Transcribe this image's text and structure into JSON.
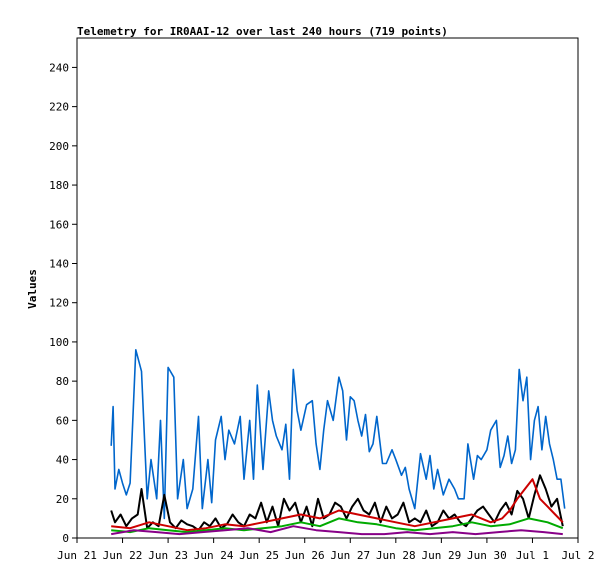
{
  "chart_data": {
    "type": "line",
    "title": "Telemetry for IR0AAI-12 over last 240 hours (719 points)",
    "xlabel": "",
    "ylabel": "Values",
    "xlim": [
      "Jun 21",
      "Jul 2"
    ],
    "ylim": [
      0,
      255
    ],
    "x_ticks": [
      "Jun 21",
      "Jun 22",
      "Jun 23",
      "Jun 24",
      "Jun 25",
      "Jun 26",
      "Jun 27",
      "Jun 28",
      "Jun 29",
      "Jun 30",
      "Jul 1",
      "Jul 2"
    ],
    "y_ticks": [
      0,
      20,
      40,
      60,
      80,
      100,
      120,
      140,
      160,
      180,
      200,
      220,
      240
    ],
    "grid": false,
    "legend": "none",
    "data_start": "Jun 21 18:00",
    "data_end": "Jul 1 18:00",
    "series": [
      {
        "color": "#0066cc",
        "x_hours": [
          0,
          1,
          2,
          4,
          6,
          8,
          10,
          13,
          16,
          19,
          21,
          24,
          26,
          28,
          30,
          33,
          35,
          38,
          40,
          43,
          46,
          48,
          51,
          53,
          55,
          58,
          60,
          62,
          65,
          68,
          70,
          73,
          75,
          77,
          80,
          83,
          85,
          87,
          90,
          92,
          94,
          96,
          98,
          100,
          103,
          106,
          108,
          110,
          112,
          114,
          117,
          120,
          122,
          124,
          126,
          128,
          130,
          132,
          134,
          136,
          138,
          140,
          143,
          145,
          148,
          150,
          153,
          155,
          157,
          160,
          163,
          166,
          168,
          170,
          172,
          175,
          178,
          181,
          183,
          186,
          188,
          191,
          193,
          195,
          198,
          200,
          203,
          205,
          207,
          209,
          211,
          213,
          215,
          217,
          219,
          221,
          223,
          225,
          227,
          229,
          231,
          233,
          235,
          237,
          239
        ],
        "values": [
          47,
          67,
          25,
          35,
          28,
          22,
          28,
          96,
          85,
          20,
          40,
          20,
          60,
          10,
          87,
          82,
          20,
          40,
          15,
          25,
          62,
          15,
          40,
          18,
          50,
          62,
          40,
          55,
          48,
          62,
          30,
          60,
          30,
          78,
          35,
          75,
          60,
          52,
          45,
          58,
          30,
          86,
          65,
          55,
          68,
          70,
          48,
          35,
          55,
          70,
          60,
          82,
          75,
          50,
          72,
          70,
          60,
          52,
          63,
          44,
          48,
          62,
          38,
          38,
          45,
          40,
          32,
          36,
          25,
          15,
          43,
          30,
          42,
          25,
          35,
          22,
          30,
          25,
          20,
          20,
          48,
          30,
          42,
          40,
          45,
          55,
          60,
          36,
          42,
          52,
          38,
          45,
          86,
          70,
          82,
          40,
          60,
          67,
          45,
          62,
          48,
          40,
          30,
          30,
          15
        ]
      },
      {
        "color": "#000000",
        "x_hours": [
          0,
          2,
          5,
          8,
          11,
          14,
          16,
          19,
          22,
          25,
          28,
          31,
          34,
          37,
          40,
          43,
          46,
          49,
          52,
          55,
          58,
          61,
          64,
          67,
          70,
          73,
          76,
          79,
          82,
          85,
          88,
          91,
          94,
          97,
          100,
          103,
          106,
          109,
          112,
          115,
          118,
          121,
          124,
          127,
          130,
          133,
          136,
          139,
          142,
          145,
          148,
          151,
          154,
          157,
          160,
          163,
          166,
          169,
          172,
          175,
          178,
          181,
          184,
          187,
          190,
          193,
          196,
          199,
          202,
          205,
          208,
          211,
          214,
          217,
          220,
          223,
          226,
          229,
          232,
          235,
          238
        ],
        "values": [
          14,
          8,
          12,
          6,
          10,
          12,
          25,
          5,
          8,
          6,
          22,
          8,
          5,
          9,
          7,
          6,
          4,
          8,
          6,
          10,
          5,
          7,
          12,
          8,
          6,
          12,
          10,
          18,
          8,
          16,
          6,
          20,
          14,
          18,
          8,
          16,
          6,
          20,
          10,
          12,
          18,
          16,
          10,
          16,
          20,
          14,
          12,
          18,
          8,
          16,
          10,
          12,
          18,
          8,
          10,
          8,
          14,
          6,
          8,
          14,
          10,
          12,
          8,
          6,
          10,
          14,
          16,
          12,
          8,
          14,
          18,
          12,
          24,
          20,
          10,
          22,
          32,
          25,
          16,
          20,
          6
        ]
      },
      {
        "color": "#cc0000",
        "x_hours": [
          0,
          10,
          20,
          30,
          40,
          50,
          60,
          70,
          80,
          90,
          100,
          110,
          120,
          130,
          140,
          150,
          160,
          170,
          180,
          190,
          200,
          206,
          210,
          214,
          218,
          222,
          226,
          230,
          234,
          238
        ],
        "values": [
          6,
          5,
          8,
          6,
          4,
          5,
          7,
          6,
          8,
          10,
          12,
          10,
          14,
          12,
          10,
          8,
          6,
          8,
          10,
          12,
          8,
          10,
          14,
          20,
          25,
          30,
          20,
          16,
          12,
          8
        ]
      },
      {
        "color": "#00aa00",
        "x_hours": [
          0,
          10,
          20,
          30,
          40,
          50,
          60,
          70,
          80,
          90,
          100,
          110,
          120,
          130,
          140,
          150,
          160,
          170,
          180,
          190,
          200,
          210,
          220,
          230,
          238
        ],
        "values": [
          4,
          3,
          5,
          4,
          3,
          4,
          5,
          4,
          5,
          6,
          8,
          6,
          10,
          8,
          7,
          5,
          4,
          5,
          6,
          8,
          6,
          7,
          10,
          8,
          5
        ]
      },
      {
        "color": "#880088",
        "x_hours": [
          0,
          12,
          24,
          36,
          48,
          60,
          72,
          84,
          96,
          108,
          120,
          132,
          144,
          156,
          168,
          180,
          192,
          204,
          216,
          228,
          238
        ],
        "values": [
          2,
          4,
          3,
          2,
          3,
          4,
          5,
          3,
          6,
          4,
          3,
          2,
          2,
          3,
          2,
          3,
          2,
          3,
          4,
          3,
          2
        ]
      }
    ]
  }
}
